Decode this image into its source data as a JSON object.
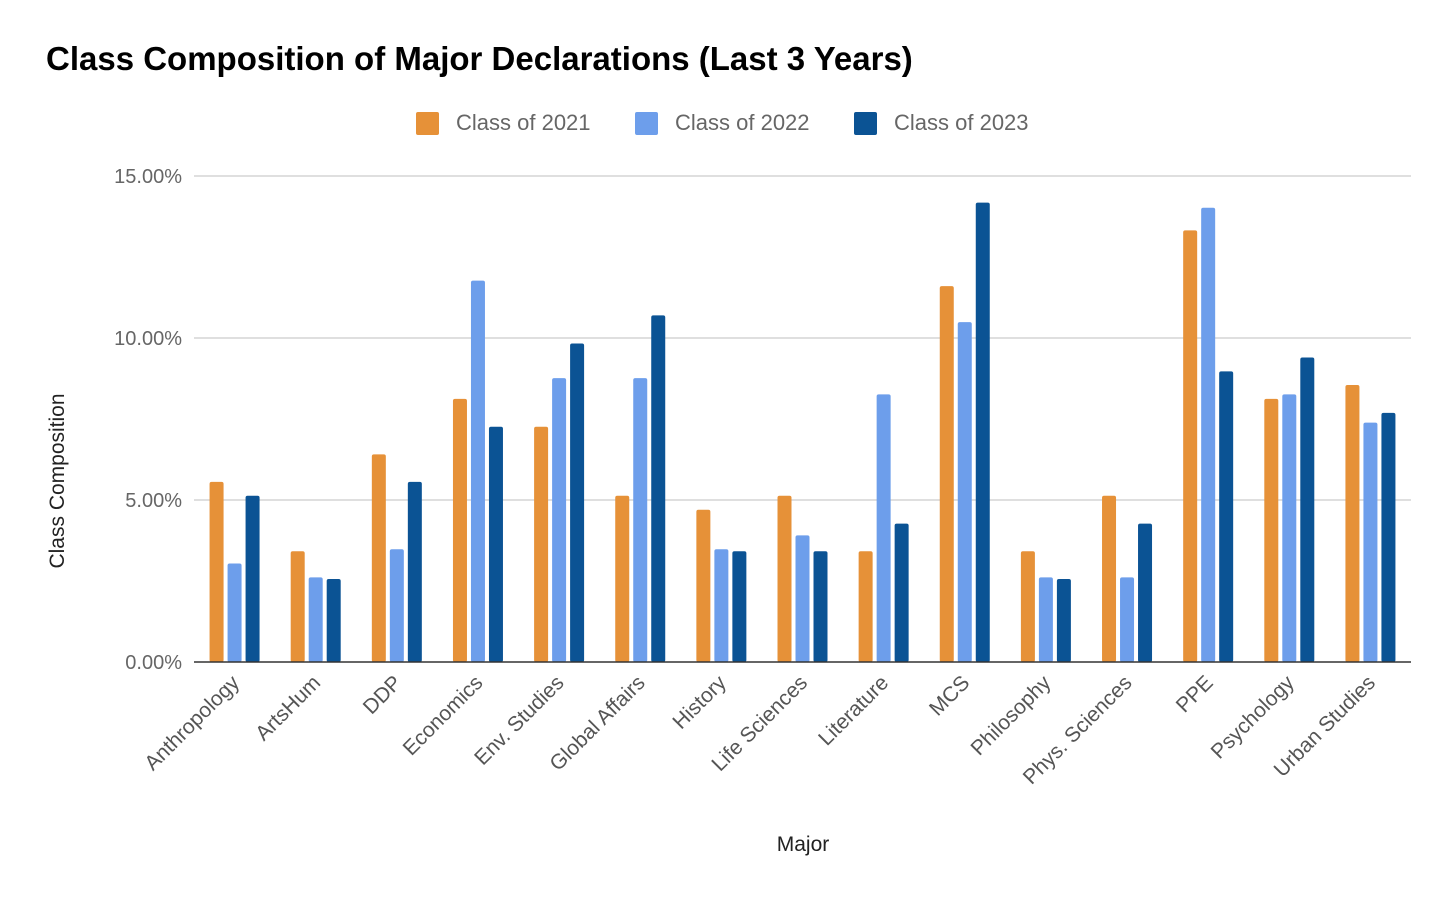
{
  "chart_data": {
    "type": "bar",
    "title": "Class Composition of Major Declarations (Last 3 Years)",
    "xlabel": "Major",
    "ylabel": "Class Composition",
    "ylim": [
      0,
      15
    ],
    "yticks": [
      0,
      5,
      10,
      15
    ],
    "ytick_labels": [
      "0.00%",
      "5.00%",
      "10.00%",
      "15.00%"
    ],
    "grid": true,
    "legend_position": "top-center",
    "categories": [
      "Anthropology",
      "ArtsHum",
      "DDP",
      "Economics",
      "Env. Studies",
      "Global Affairs",
      "History",
      "Life Sciences",
      "Literature",
      "MCS",
      "Philosophy",
      "Phys. Sciences",
      "PPE",
      "Psychology",
      "Urban Studies"
    ],
    "series": [
      {
        "name": "Class of 2021",
        "color": "#e69138",
        "values": [
          5.56,
          3.42,
          6.41,
          8.12,
          7.26,
          5.13,
          4.7,
          5.13,
          3.42,
          11.6,
          3.42,
          5.13,
          13.32,
          8.12,
          8.55
        ]
      },
      {
        "name": "Class of 2022",
        "color": "#6d9eeb",
        "values": [
          3.04,
          2.61,
          3.48,
          11.77,
          8.76,
          8.76,
          3.48,
          3.91,
          8.26,
          10.49,
          2.61,
          2.61,
          14.02,
          8.26,
          7.39
        ]
      },
      {
        "name": "Class of 2023",
        "color": "#0b5394",
        "values": [
          5.13,
          2.56,
          5.56,
          7.26,
          9.83,
          10.7,
          3.42,
          3.42,
          4.27,
          14.18,
          2.56,
          4.27,
          8.97,
          9.4,
          7.69
        ]
      }
    ]
  }
}
